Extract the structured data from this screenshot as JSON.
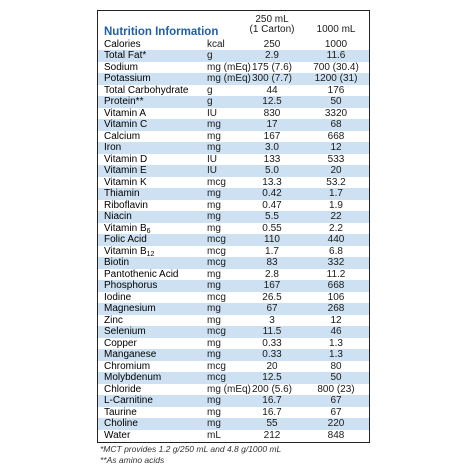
{
  "header": {
    "title": "Nutrition Information",
    "col1": [
      "250 mL",
      "(1 Carton)"
    ],
    "col2": "1000 mL"
  },
  "table": {
    "rows": [
      [
        "Calories",
        "kcal",
        "250",
        "1000"
      ],
      [
        "Total Fat*",
        "g",
        "2.9",
        "11.6"
      ],
      [
        "Sodium",
        "mg (mEq)",
        "175 (7.6)",
        "700 (30.4)"
      ],
      [
        "Potassium",
        "mg (mEq)",
        "300 (7.7)",
        "1200 (31)"
      ],
      [
        "Total Carbohydrate",
        "g",
        "44",
        "176"
      ],
      [
        "Protein**",
        "g",
        "12.5",
        "50"
      ],
      [
        "Vitamin A",
        "IU",
        "830",
        "3320"
      ],
      [
        "Vitamin C",
        "mg",
        "17",
        "68"
      ],
      [
        "Calcium",
        "mg",
        "167",
        "668"
      ],
      [
        "Iron",
        "mg",
        "3.0",
        "12"
      ],
      [
        "Vitamin D",
        "IU",
        "133",
        "533"
      ],
      [
        "Vitamin E",
        "IU",
        "5.0",
        "20"
      ],
      [
        "Vitamin K",
        "mcg",
        "13.3",
        "53.2"
      ],
      [
        "Thiamin",
        "mg",
        "0.42",
        "1.7"
      ],
      [
        "Riboflavin",
        "mg",
        "0.47",
        "1.9"
      ],
      [
        "Niacin",
        "mg",
        "5.5",
        "22"
      ],
      [
        {
          "text": "Vitamin B",
          "sub": "6"
        },
        "mg",
        "0.55",
        "2.2"
      ],
      [
        "Folic Acid",
        "mcg",
        "110",
        "440"
      ],
      [
        {
          "text": "Vitamin B",
          "sub": "12"
        },
        "mcg",
        "1.7",
        "6.8"
      ],
      [
        "Biotin",
        "mcg",
        "83",
        "332"
      ],
      [
        "Pantothenic Acid",
        "mg",
        "2.8",
        "11.2"
      ],
      [
        "Phosphorus",
        "mg",
        "167",
        "668"
      ],
      [
        "Iodine",
        "mcg",
        "26.5",
        "106"
      ],
      [
        "Magnesium",
        "mg",
        "67",
        "268"
      ],
      [
        "Zinc",
        "mg",
        "3",
        "12"
      ],
      [
        "Selenium",
        "mcg",
        "11.5",
        "46"
      ],
      [
        "Copper",
        "mg",
        "0.33",
        "1.3"
      ],
      [
        "Manganese",
        "mg",
        "0.33",
        "1.3"
      ],
      [
        "Chromium",
        "mcg",
        "20",
        "80"
      ],
      [
        "Molybdenum",
        "mcg",
        "12.5",
        "50"
      ],
      [
        "Chloride",
        "mg (mEq)",
        "200 (5.6)",
        "800 (23)"
      ],
      [
        "L-Carnitine",
        "mg",
        "16.7",
        "67"
      ],
      [
        "Taurine",
        "mg",
        "16.7",
        "67"
      ],
      [
        "Choline",
        "mg",
        "55",
        "220"
      ],
      [
        "Water",
        "mL",
        "212",
        "848"
      ]
    ]
  },
  "footnotes": [
    "*MCT provides 1.2 g/250 mL and 4.8 g/1000 mL",
    "**As amino acids"
  ]
}
